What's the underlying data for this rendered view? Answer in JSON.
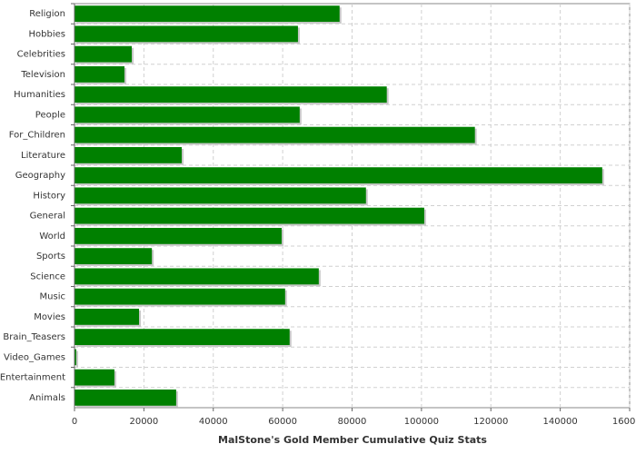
{
  "chart_data": {
    "type": "hbar",
    "xlabel": "MalStone's Gold Member Cumulative Quiz Stats",
    "categories": [
      "Religion",
      "Hobbies",
      "Celebrities",
      "Television",
      "Humanities",
      "People",
      "For_Children",
      "Literature",
      "Geography",
      "History",
      "General",
      "World",
      "Sports",
      "Science",
      "Music",
      "Movies",
      "Brain_Teasers",
      "Video_Games",
      "Entertainment",
      "Animals"
    ],
    "values": [
      76400,
      64400,
      16500,
      14400,
      90000,
      64900,
      115400,
      30900,
      152100,
      84000,
      100800,
      59700,
      22300,
      70400,
      60700,
      18600,
      62000,
      500,
      11500,
      29300
    ],
    "color": "#008000",
    "xlim": [
      0,
      160000
    ],
    "xticks": [
      0,
      20000,
      40000,
      60000,
      80000,
      100000,
      120000,
      140000,
      160000
    ],
    "grid": true
  }
}
